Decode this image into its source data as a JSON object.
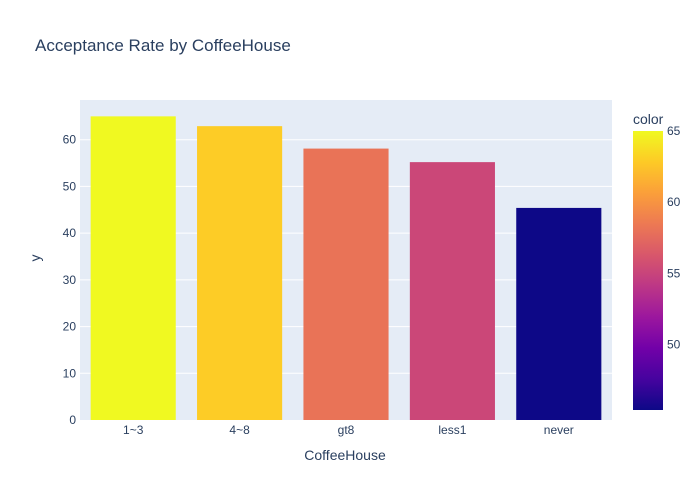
{
  "chart_data": {
    "type": "bar",
    "title": "Acceptance Rate by CoffeeHouse",
    "xlabel": "CoffeeHouse",
    "ylabel": "y",
    "categories": [
      "1~3",
      "4~8",
      "gt8",
      "less1",
      "never"
    ],
    "values": [
      65.0,
      62.9,
      58.1,
      55.2,
      45.4
    ],
    "ylim": [
      0,
      68.5
    ],
    "yticks": [
      0,
      10,
      20,
      30,
      40,
      50,
      60
    ],
    "grid": true,
    "colorbar": {
      "title": "color",
      "range": [
        45.4,
        65.0
      ],
      "ticks": [
        50,
        55,
        60,
        65
      ],
      "colorscale": [
        "#0d0887",
        "#46039f",
        "#7201a8",
        "#9c179e",
        "#bd3786",
        "#d8576b",
        "#ed7953",
        "#fb9f3a",
        "#fdca26",
        "#f0f921"
      ]
    },
    "plot_bg": "#e5ecf6"
  }
}
